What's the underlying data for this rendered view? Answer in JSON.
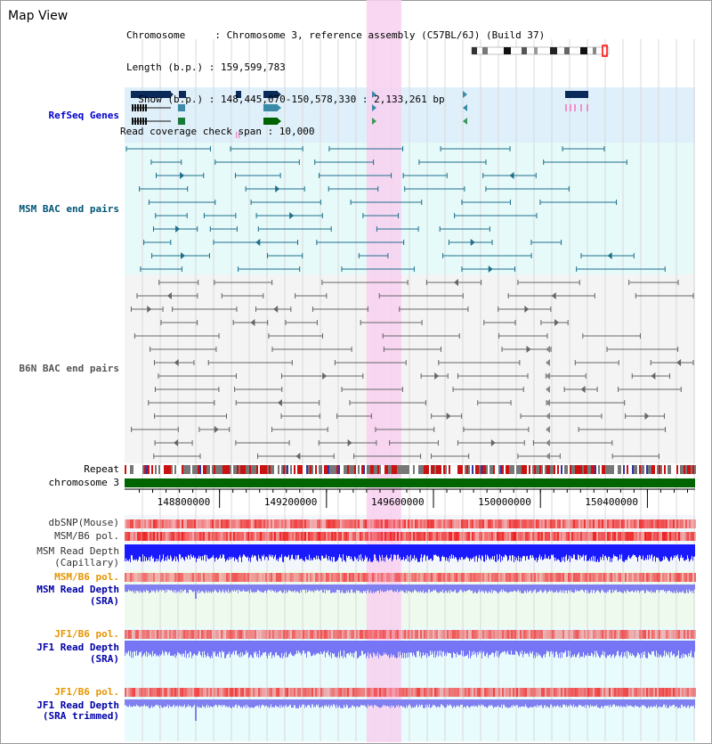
{
  "title": "Map View",
  "info": {
    "chromosome": "Chromosome     : Chromosome 3, reference assembly (C57BL/6J) (Build 37)",
    "length": "Length (b.p.) : 159,599,783",
    "show": "  Show (b.p.) : 148,445,070-150,578,330 : 2,133,261 bp",
    "read_coverage": "Read coverage check span : 10,000"
  },
  "tracks": {
    "refseq": "RefSeq Genes",
    "msm_bac": "MSM BAC end pairs",
    "b6n_bac": "B6N BAC end pairs",
    "repeat": "Repeat",
    "chromosome": "chromosome 3",
    "dbsnp": "dbSNP(Mouse)",
    "msm_b6_pol_1": "MSM/B6 pol.",
    "msm_rd_cap_1": "MSM Read Depth",
    "msm_rd_cap_2": "(Capillary)",
    "msm_b6_pol_2": "MSM/B6 pol.",
    "msm_rd_sra_1": "MSM Read Depth",
    "msm_rd_sra_2": "(SRA)",
    "jf1_b6_pol_1": "JF1/B6 pol.",
    "jf1_rd_sra_1": "JF1 Read Depth",
    "jf1_rd_sra_2": "(SRA)",
    "jf1_b6_pol_2": "JF1/B6 pol.",
    "jf1_rd_trim_1": "JF1 Read Depth",
    "jf1_rd_trim_2": "(SRA trimmed)"
  },
  "axis": {
    "ticks": [
      "148800000",
      "149200000",
      "149600000",
      "150000000",
      "150400000"
    ],
    "tick_values": [
      148800000,
      149200000,
      149600000,
      150000000,
      150400000
    ],
    "range": [
      148445070,
      150578330
    ]
  },
  "highlight_range": [
    149350000,
    149480000
  ],
  "colors": {
    "refseq_label": "#0000cc",
    "msm_label": "#005577",
    "b6n_label": "#555555",
    "pol_label": "#e69500",
    "depth_label": "#0000aa",
    "highlight": "#f8d0f0",
    "chromosome_bar": "#006400",
    "depth_blue": "#1a1aff",
    "depth_light": "#8080f0",
    "snp_red": "#ee3333"
  }
}
